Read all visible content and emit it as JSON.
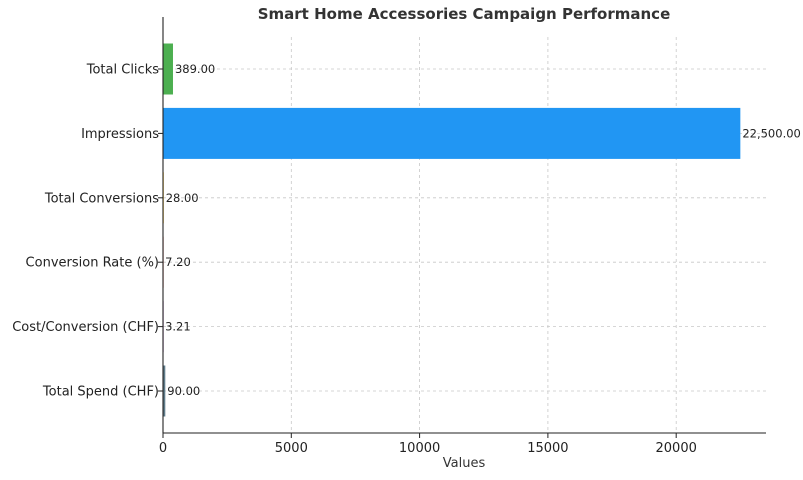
{
  "chart_data": {
    "type": "bar",
    "orientation": "horizontal",
    "title": "Smart Home Accessories Campaign Performance",
    "xlabel": "Values",
    "ylabel": "",
    "xlim": [
      0,
      23500
    ],
    "x_ticks": [
      0,
      5000,
      10000,
      15000,
      20000
    ],
    "grid": true,
    "categories": [
      "Total Clicks",
      "Impressions",
      "Total Conversions",
      "Conversion Rate (%)",
      "Cost/Conversion (CHF)",
      "Total Spend (CHF)"
    ],
    "values": [
      389,
      22500,
      28,
      7.2,
      3.21,
      90
    ],
    "value_labels": [
      "389.00",
      "22,500.00",
      "28.00",
      "7.20",
      "3.21",
      "90.00"
    ],
    "colors": [
      "#4caf50",
      "#2196f3",
      "#ffc107",
      "#f44336",
      "#9c27b0",
      "#607d8b"
    ]
  }
}
